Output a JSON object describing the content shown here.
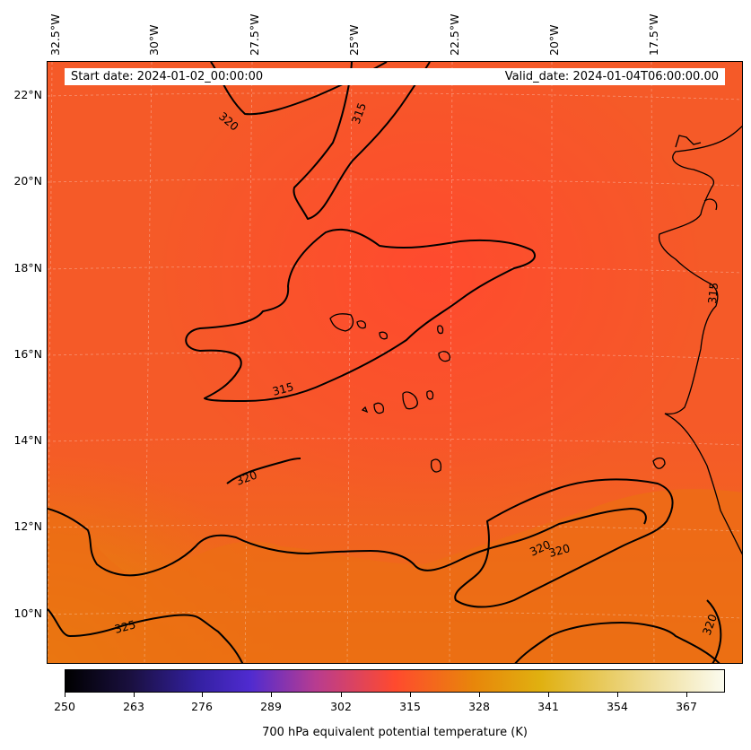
{
  "header": {
    "start_date": "Start date: 2024-01-02_00:00:00",
    "valid_date": "Valid_date: 2024-01-04T06:00:00.00"
  },
  "map": {
    "longitude_labels": [
      "32.5°W",
      "30°W",
      "27.5°W",
      "25°W",
      "22.5°W",
      "20°W",
      "17.5°W"
    ],
    "latitude_labels": [
      "22°N",
      "20°N",
      "18°N",
      "16°N",
      "14°N",
      "12°N",
      "10°N"
    ],
    "contour_labels": [
      "320",
      "315",
      "315",
      "320",
      "325",
      "320",
      "320",
      "320",
      "315"
    ],
    "field_colors": {
      "base": "#f55a28",
      "warm": "#e8780c",
      "hot": "#e09008",
      "cool": "#ff4a2e"
    }
  },
  "colorbar": {
    "ticks": [
      "250",
      "263",
      "276",
      "289",
      "302",
      "315",
      "328",
      "341",
      "354",
      "367"
    ],
    "title": "700 hPa equivalent potential temperature (K)"
  }
}
